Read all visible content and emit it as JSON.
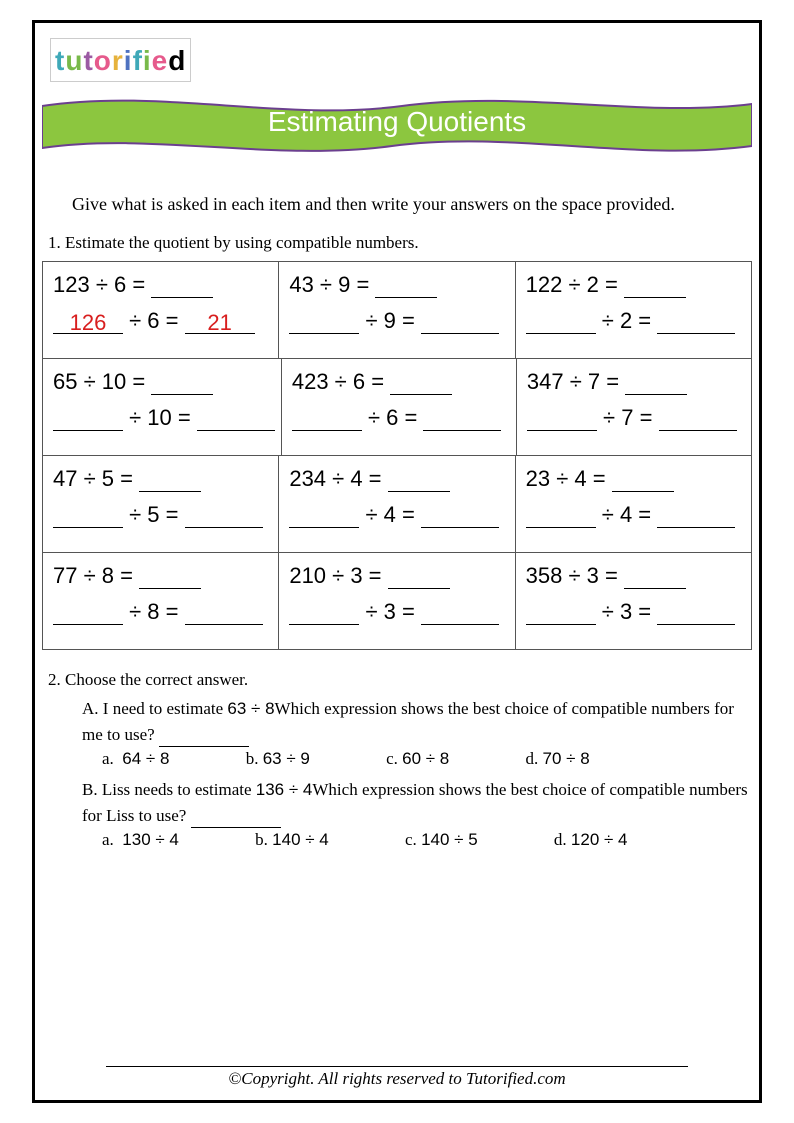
{
  "logo_letters": [
    "t",
    "u",
    "t",
    "o",
    "r",
    "i",
    "f",
    "i",
    "e",
    "d"
  ],
  "banner": {
    "title": "Estimating Quotients",
    "fill": "#8cc63f",
    "stroke": "#6b3f8f"
  },
  "instructions": "Give what is asked in each item and then write your answers on the space provided.",
  "q1_label": "1. Estimate the quotient by using compatible numbers.",
  "grid": [
    [
      {
        "dividend": "123",
        "divisor": "6",
        "ex_dividend": "126",
        "ex_quot": "21"
      },
      {
        "dividend": "43",
        "divisor": "9"
      },
      {
        "dividend": "122",
        "divisor": "2"
      }
    ],
    [
      {
        "dividend": "65",
        "divisor": "10"
      },
      {
        "dividend": "423",
        "divisor": "6"
      },
      {
        "dividend": "347",
        "divisor": "7"
      }
    ],
    [
      {
        "dividend": "47",
        "divisor": "5"
      },
      {
        "dividend": "234",
        "divisor": "4"
      },
      {
        "dividend": "23",
        "divisor": "4"
      }
    ],
    [
      {
        "dividend": "77",
        "divisor": "8"
      },
      {
        "dividend": "210",
        "divisor": "3"
      },
      {
        "dividend": "358",
        "divisor": "3"
      }
    ]
  ],
  "q2_label": "2. Choose the correct answer.",
  "q2": {
    "A": {
      "prefix": "A.  I need to estimate ",
      "expr": "63 ÷ 8",
      "suffix": "Which expression shows the best choice of compatible numbers for me to use? ",
      "choices": {
        "a": "64 ÷ 8",
        "b": "63 ÷ 9",
        "c": "60 ÷ 8",
        "d": "70 ÷ 8"
      }
    },
    "B": {
      "prefix": "B.  Liss needs to estimate ",
      "expr": "136 ÷ 4",
      "suffix": "Which expression shows the best choice of compatible numbers for Liss to use? ",
      "choices": {
        "a": "130 ÷ 4",
        "b": "140 ÷ 4",
        "c": "140 ÷ 5",
        "d": "120 ÷ 4"
      }
    }
  },
  "footer": "©Copyright. All rights reserved to Tutorified.com"
}
